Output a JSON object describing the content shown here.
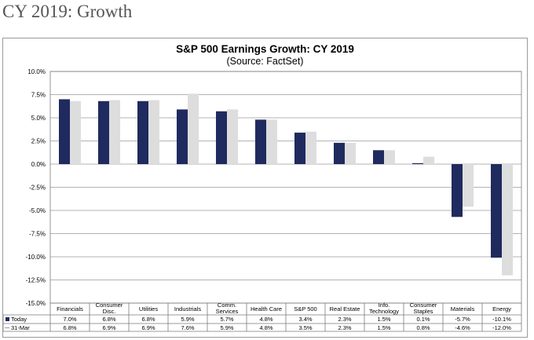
{
  "page": {
    "heading": "CY 2019: Growth"
  },
  "chart_data": {
    "type": "bar",
    "title": "S&P 500 Earnings Growth: CY 2019",
    "subtitle": "(Source: FactSet)",
    "xlabel": "",
    "ylabel": "",
    "ylim": [
      -15.0,
      10.0
    ],
    "ytick_step": 2.5,
    "yticks": [
      "10.0%",
      "7.5%",
      "5.0%",
      "2.5%",
      "0.0%",
      "-2.5%",
      "-5.0%",
      "-7.5%",
      "-10.0%",
      "-12.5%",
      "-15.0%"
    ],
    "grid": true,
    "legend": "table",
    "categories": [
      [
        "Financials"
      ],
      [
        "Consumer",
        "Disc."
      ],
      [
        "Utilities"
      ],
      [
        "Industrials"
      ],
      [
        "Comm.",
        "Services"
      ],
      [
        "Health Care"
      ],
      [
        "S&P 500"
      ],
      [
        "Real Estate"
      ],
      [
        "Info.",
        "Technology"
      ],
      [
        "Consumer",
        "Staples"
      ],
      [
        "Materials"
      ],
      [
        "Energy"
      ]
    ],
    "series": [
      {
        "name": "Today",
        "color": "#1f2a5e",
        "values": [
          7.0,
          6.8,
          6.8,
          5.9,
          5.7,
          4.8,
          3.4,
          2.3,
          1.5,
          0.1,
          -5.7,
          -10.1
        ],
        "labels": [
          "7.0%",
          "6.8%",
          "6.8%",
          "5.9%",
          "5.7%",
          "4.8%",
          "3.4%",
          "2.3%",
          "1.5%",
          "0.1%",
          "-5.7%",
          "-10.1%"
        ]
      },
      {
        "name": "31-Mar",
        "color": "#dddddd",
        "values": [
          6.8,
          6.9,
          6.9,
          7.6,
          5.9,
          4.8,
          3.5,
          2.3,
          1.5,
          0.8,
          -4.6,
          -12.0
        ],
        "labels": [
          "6.8%",
          "6.9%",
          "6.9%",
          "7.6%",
          "5.9%",
          "4.8%",
          "3.5%",
          "2.3%",
          "1.5%",
          "0.8%",
          "-4.6%",
          "-12.0%"
        ]
      }
    ]
  }
}
